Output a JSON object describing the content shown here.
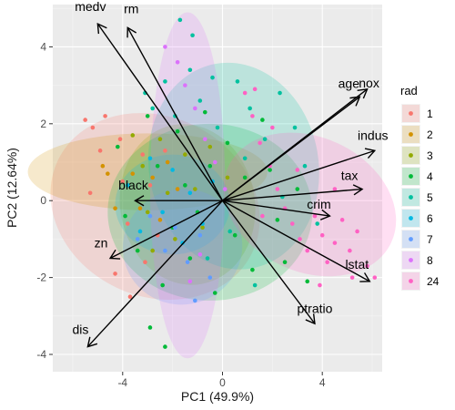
{
  "chart_data": {
    "type": "scatter",
    "subtype": "pca-biplot",
    "xlabel": "PC1 (49.9%)",
    "ylabel": "PC2 (12.64%)",
    "xlim": [
      -6.8,
      6.4
    ],
    "ylim": [
      -4.45,
      5.1
    ],
    "x_ticks": [
      -4,
      0,
      4
    ],
    "y_ticks": [
      -4,
      -2,
      0,
      2,
      4
    ],
    "grid": true,
    "legend_position": "right",
    "legend_title": "rad",
    "colors": {
      "1": "#F8766D",
      "2": "#D39200",
      "3": "#93AA00",
      "4": "#00BA38",
      "5": "#00C19F",
      "6": "#00B9E3",
      "7": "#619CFF",
      "8": "#DB72FB",
      "24": "#FF61C3"
    },
    "series": [
      {
        "name": "1",
        "points": [
          [
            -5.5,
            2.1
          ],
          [
            -5.2,
            1.9
          ],
          [
            -4.7,
            2.2
          ],
          [
            -4.9,
            1.3
          ],
          [
            -5.3,
            0.2
          ],
          [
            -4.1,
            1.6
          ],
          [
            -4.0,
            0.5
          ],
          [
            -3.8,
            -0.6
          ],
          [
            -3.2,
            1.2
          ],
          [
            -2.9,
            0.4
          ],
          [
            -2.6,
            -0.9
          ],
          [
            -2.3,
            1.3
          ],
          [
            -4.3,
            -1.9
          ],
          [
            -3.7,
            -2.5
          ],
          [
            -3.1,
            -1.6
          ]
        ],
        "ellipse": {
          "cx": -2.7,
          "cy": -0.15,
          "rx": 3.6,
          "ry": 2.8,
          "angle": 65
        }
      },
      {
        "name": "2",
        "points": [
          [
            -4.8,
            0.9
          ],
          [
            -4.6,
            0.7
          ],
          [
            -4.3,
            -0.2
          ],
          [
            -3.6,
            0.7
          ],
          [
            -3.3,
            -0.2
          ],
          [
            -2.8,
            0.6
          ],
          [
            -2.2,
            1.0
          ],
          [
            -2.5,
            -0.5
          ],
          [
            -1.8,
            0.3
          ]
        ],
        "ellipse": {
          "cx": -3.0,
          "cy": 0.75,
          "rx": 4.8,
          "ry": 1.0,
          "angle": 0
        }
      },
      {
        "name": "3",
        "points": [
          [
            -3.6,
            1.7
          ],
          [
            -3.2,
            0.9
          ],
          [
            -3.0,
            -0.3
          ],
          [
            -2.5,
            1.6
          ],
          [
            -2.2,
            0.2
          ],
          [
            -1.9,
            -1.0
          ],
          [
            -1.5,
            1.2
          ],
          [
            -1.1,
            0.3
          ],
          [
            -0.8,
            -0.7
          ],
          [
            -0.5,
            1.4
          ],
          [
            0.2,
            0.6
          ],
          [
            -2.8,
            -1.3
          ]
        ],
        "ellipse": {
          "cx": -1.4,
          "cy": -0.1,
          "rx": 2.7,
          "ry": 2.1,
          "angle": 10
        }
      },
      {
        "name": "4",
        "points": [
          [
            -4.2,
            1.4
          ],
          [
            -3.9,
            -0.4
          ],
          [
            -3.4,
            -1.3
          ],
          [
            -3.0,
            2.2
          ],
          [
            -2.6,
            0.9
          ],
          [
            -2.4,
            -2.2
          ],
          [
            -2.0,
            -0.7
          ],
          [
            -1.8,
            1.8
          ],
          [
            -1.5,
            0.4
          ],
          [
            -1.3,
            -1.5
          ],
          [
            -1.0,
            -0.3
          ],
          [
            -0.7,
            2.3
          ],
          [
            -0.5,
            0.9
          ],
          [
            -0.3,
            -2.4
          ],
          [
            0.2,
            1.5
          ],
          [
            0.5,
            -0.9
          ],
          [
            0.9,
            0.6
          ],
          [
            1.2,
            -1.8
          ],
          [
            1.6,
            2.1
          ],
          [
            1.9,
            0.8
          ],
          [
            2.2,
            -0.5
          ],
          [
            2.5,
            -1.6
          ],
          [
            3.0,
            0.3
          ],
          [
            3.4,
            -2.1
          ],
          [
            -2.9,
            -3.3
          ],
          [
            -2.3,
            -3.8
          ]
        ],
        "ellipse": {
          "cx": -0.5,
          "cy": -0.3,
          "rx": 4.1,
          "ry": 2.3,
          "angle": 0
        }
      },
      {
        "name": "5",
        "points": [
          [
            -3.1,
            2.8
          ],
          [
            -2.8,
            2.4
          ],
          [
            -2.3,
            3.1
          ],
          [
            -1.9,
            2.2
          ],
          [
            -1.3,
            3.4
          ],
          [
            -0.9,
            2.6
          ],
          [
            -0.4,
            3.2
          ],
          [
            -0.2,
            1.9
          ],
          [
            0.6,
            3.1
          ],
          [
            1.1,
            2.4
          ],
          [
            1.7,
            1.6
          ],
          [
            2.3,
            2.8
          ],
          [
            2.9,
            1.9
          ],
          [
            3.3,
            0.9
          ],
          [
            3.8,
            -0.6
          ],
          [
            0.3,
            -0.8
          ],
          [
            1.3,
            -2.2
          ],
          [
            -0.6,
            -1.5
          ],
          [
            0.9,
            1.1
          ],
          [
            2.4,
            0.1
          ],
          [
            -1.7,
            4.7
          ],
          [
            -1.2,
            4.3
          ]
        ],
        "ellipse": {
          "cx": 0.45,
          "cy": 0.9,
          "rx": 3.4,
          "ry": 2.7,
          "angle": 10
        }
      },
      {
        "name": "6",
        "points": [
          [
            -3.8,
            0.4
          ],
          [
            -3.3,
            -0.8
          ],
          [
            -2.9,
            1.1
          ],
          [
            -2.4,
            -0.3
          ],
          [
            -2.0,
            0.8
          ],
          [
            -1.6,
            -1.1
          ],
          [
            -1.3,
            0.2
          ],
          [
            -0.8,
            -0.6
          ],
          [
            -0.4,
            0.5
          ]
        ],
        "ellipse": {
          "cx": -2.0,
          "cy": -0.1,
          "rx": 2.3,
          "ry": 1.3,
          "angle": 0
        }
      },
      {
        "name": "7",
        "points": [
          [
            -3.4,
            -1.0
          ],
          [
            -2.9,
            -0.4
          ],
          [
            -2.3,
            -1.3
          ],
          [
            -1.9,
            -0.7
          ],
          [
            -1.4,
            -1.6
          ],
          [
            -0.9,
            -0.9
          ],
          [
            -0.5,
            -2.0
          ],
          [
            -1.1,
            -2.6
          ]
        ],
        "ellipse": {
          "cx": -1.6,
          "cy": -1.2,
          "rx": 2.4,
          "ry": 1.5,
          "angle": 15
        }
      },
      {
        "name": "8",
        "points": [
          [
            -2.3,
            4.0
          ],
          [
            -1.8,
            3.6
          ],
          [
            -1.5,
            3.0
          ],
          [
            -1.1,
            2.4
          ],
          [
            -0.7,
            1.6
          ],
          [
            -0.3,
            1.0
          ],
          [
            0.1,
            0.3
          ],
          [
            -1.3,
            -2.1
          ],
          [
            -0.9,
            -1.4
          ]
        ],
        "ellipse": {
          "cx": -1.4,
          "cy": 0.4,
          "rx": 1.5,
          "ry": 4.5,
          "angle": 0
        }
      },
      {
        "name": "24",
        "points": [
          [
            0.9,
            2.8
          ],
          [
            1.2,
            2.2
          ],
          [
            1.5,
            1.5
          ],
          [
            1.9,
            0.9
          ],
          [
            2.2,
            0.3
          ],
          [
            2.5,
            -0.2
          ],
          [
            2.8,
            -0.6
          ],
          [
            3.1,
            -1.0
          ],
          [
            3.4,
            -1.3
          ],
          [
            3.7,
            -0.4
          ],
          [
            4.0,
            -0.9
          ],
          [
            4.2,
            -1.6
          ],
          [
            4.5,
            -1.1
          ],
          [
            4.8,
            -0.5
          ],
          [
            5.1,
            -1.3
          ],
          [
            5.4,
            -0.8
          ],
          [
            5.8,
            -1.7
          ],
          [
            4.5,
            0.3
          ],
          [
            3.0,
            0.8
          ],
          [
            2.0,
            1.9
          ],
          [
            1.6,
            -0.4
          ],
          [
            6.1,
            -2.0
          ],
          [
            5.2,
            -2.0
          ],
          [
            3.9,
            -2.2
          ],
          [
            1.3,
            2.9
          ]
        ],
        "ellipse": {
          "cx": 3.5,
          "cy": -0.1,
          "rx": 3.6,
          "ry": 1.75,
          "angle": -25
        }
      }
    ],
    "loadings": [
      {
        "name": "medv",
        "x": -5.0,
        "y": 4.6
      },
      {
        "name": "rm",
        "x": -3.8,
        "y": 4.5
      },
      {
        "name": "black",
        "x": -3.5,
        "y": 0.0
      },
      {
        "name": "zn",
        "x": -4.5,
        "y": -1.5
      },
      {
        "name": "dis",
        "x": -5.4,
        "y": -3.8
      },
      {
        "name": "age",
        "x": 5.5,
        "y": 2.7
      },
      {
        "name": "nox",
        "x": 5.8,
        "y": 2.9
      },
      {
        "name": "indus",
        "x": 6.1,
        "y": 1.3
      },
      {
        "name": "tax",
        "x": 5.6,
        "y": 0.3
      },
      {
        "name": "crim",
        "x": 4.3,
        "y": -0.4
      },
      {
        "name": "lstat",
        "x": 5.9,
        "y": -2.1
      },
      {
        "name": "ptratio",
        "x": 3.7,
        "y": -3.2
      }
    ]
  }
}
